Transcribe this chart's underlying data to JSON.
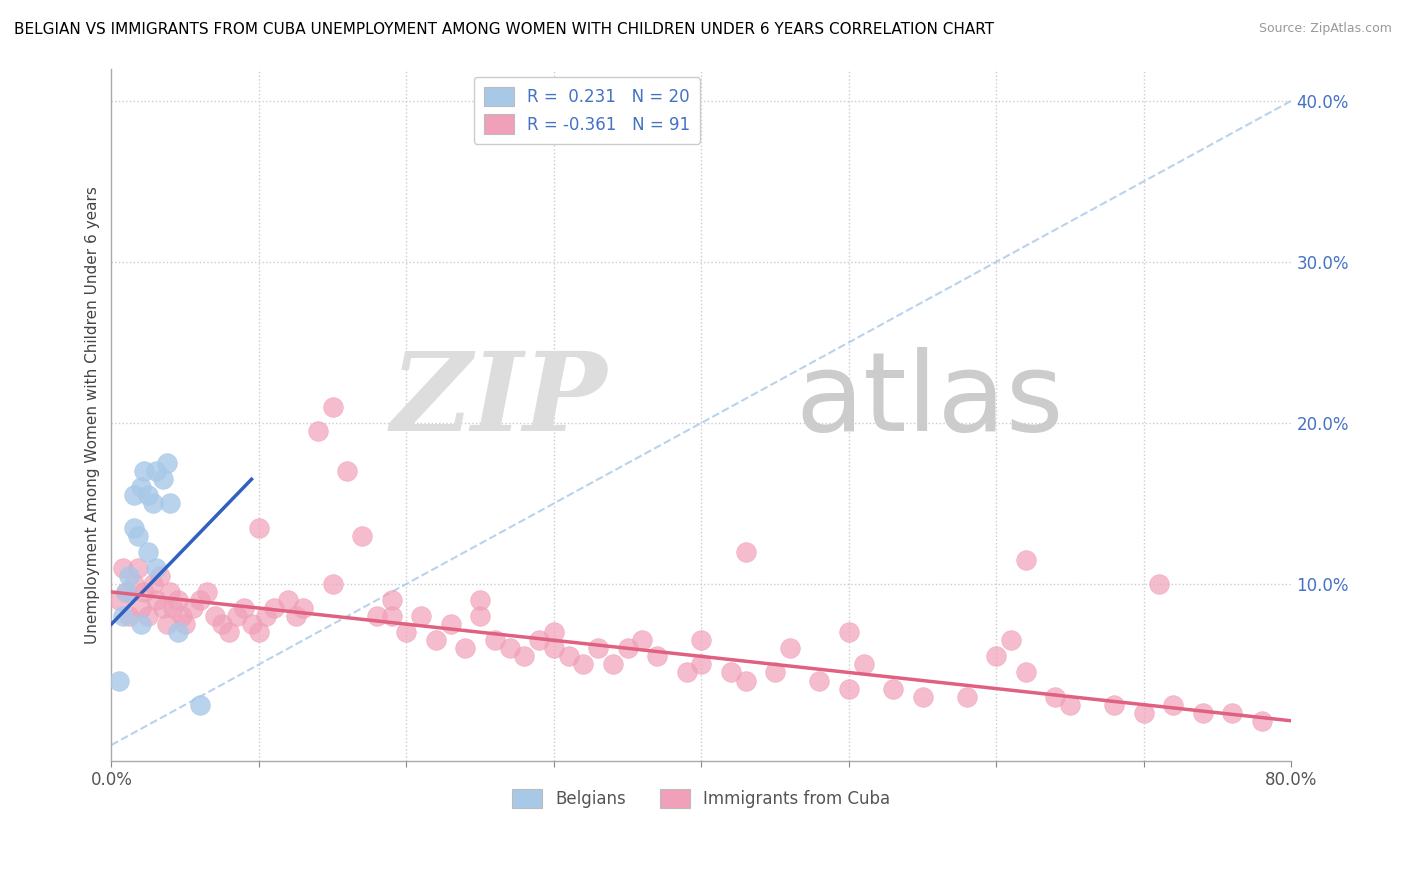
{
  "title": "BELGIAN VS IMMIGRANTS FROM CUBA UNEMPLOYMENT AMONG WOMEN WITH CHILDREN UNDER 6 YEARS CORRELATION CHART",
  "source": "Source: ZipAtlas.com",
  "ylabel": "Unemployment Among Women with Children Under 6 years",
  "xmin": 0.0,
  "xmax": 0.8,
  "ymin": -0.01,
  "ymax": 0.42,
  "yticks": [
    0.0,
    0.1,
    0.2,
    0.3,
    0.4
  ],
  "ytick_labels": [
    "",
    "10.0%",
    "20.0%",
    "30.0%",
    "40.0%"
  ],
  "xtick_positions": [
    0.0,
    0.1,
    0.2,
    0.3,
    0.4,
    0.5,
    0.6,
    0.7,
    0.8
  ],
  "xtick_labels": [
    "0.0%",
    "",
    "",
    "",
    "",
    "",
    "",
    "",
    "80.0%"
  ],
  "belgian_color": "#a8c8e8",
  "cuba_color": "#f0a0b8",
  "trendline_belgian_color": "#3060c0",
  "trendline_cuba_color": "#e06080",
  "diag_color": "#a8c8e8",
  "belgians_label": "Belgians",
  "cuba_label": "Immigrants from Cuba",
  "belgian_scatter_x": [
    0.005,
    0.008,
    0.01,
    0.012,
    0.015,
    0.015,
    0.018,
    0.02,
    0.02,
    0.022,
    0.025,
    0.025,
    0.028,
    0.03,
    0.03,
    0.035,
    0.038,
    0.04,
    0.045,
    0.06
  ],
  "belgian_scatter_y": [
    0.04,
    0.08,
    0.095,
    0.105,
    0.135,
    0.155,
    0.13,
    0.075,
    0.16,
    0.17,
    0.12,
    0.155,
    0.15,
    0.11,
    0.17,
    0.165,
    0.175,
    0.15,
    0.07,
    0.025
  ],
  "bel_trendline_x0": 0.0,
  "bel_trendline_y0": 0.075,
  "bel_trendline_x1": 0.095,
  "bel_trendline_y1": 0.165,
  "cuba_trendline_x0": 0.0,
  "cuba_trendline_y0": 0.095,
  "cuba_trendline_x1": 0.8,
  "cuba_trendline_y1": 0.015,
  "cuba_scatter_x": [
    0.005,
    0.008,
    0.01,
    0.012,
    0.015,
    0.018,
    0.02,
    0.022,
    0.025,
    0.028,
    0.03,
    0.033,
    0.035,
    0.038,
    0.04,
    0.042,
    0.045,
    0.048,
    0.05,
    0.055,
    0.06,
    0.065,
    0.07,
    0.075,
    0.08,
    0.085,
    0.09,
    0.095,
    0.1,
    0.105,
    0.11,
    0.12,
    0.125,
    0.13,
    0.14,
    0.15,
    0.16,
    0.17,
    0.18,
    0.19,
    0.2,
    0.21,
    0.22,
    0.23,
    0.24,
    0.25,
    0.26,
    0.27,
    0.28,
    0.29,
    0.3,
    0.31,
    0.32,
    0.33,
    0.34,
    0.35,
    0.37,
    0.39,
    0.4,
    0.42,
    0.43,
    0.45,
    0.46,
    0.48,
    0.5,
    0.51,
    0.53,
    0.55,
    0.58,
    0.6,
    0.61,
    0.62,
    0.64,
    0.65,
    0.68,
    0.7,
    0.72,
    0.74,
    0.76,
    0.78,
    0.1,
    0.15,
    0.19,
    0.25,
    0.3,
    0.36,
    0.4,
    0.43,
    0.5,
    0.62,
    0.71
  ],
  "cuba_scatter_y": [
    0.09,
    0.11,
    0.095,
    0.08,
    0.1,
    0.11,
    0.085,
    0.095,
    0.08,
    0.1,
    0.09,
    0.105,
    0.085,
    0.075,
    0.095,
    0.085,
    0.09,
    0.08,
    0.075,
    0.085,
    0.09,
    0.095,
    0.08,
    0.075,
    0.07,
    0.08,
    0.085,
    0.075,
    0.07,
    0.08,
    0.085,
    0.09,
    0.08,
    0.085,
    0.195,
    0.21,
    0.17,
    0.13,
    0.08,
    0.09,
    0.07,
    0.08,
    0.065,
    0.075,
    0.06,
    0.08,
    0.065,
    0.06,
    0.055,
    0.065,
    0.06,
    0.055,
    0.05,
    0.06,
    0.05,
    0.06,
    0.055,
    0.045,
    0.05,
    0.045,
    0.04,
    0.045,
    0.06,
    0.04,
    0.035,
    0.05,
    0.035,
    0.03,
    0.03,
    0.055,
    0.065,
    0.045,
    0.03,
    0.025,
    0.025,
    0.02,
    0.025,
    0.02,
    0.02,
    0.015,
    0.135,
    0.1,
    0.08,
    0.09,
    0.07,
    0.065,
    0.065,
    0.12,
    0.07,
    0.115,
    0.1
  ]
}
